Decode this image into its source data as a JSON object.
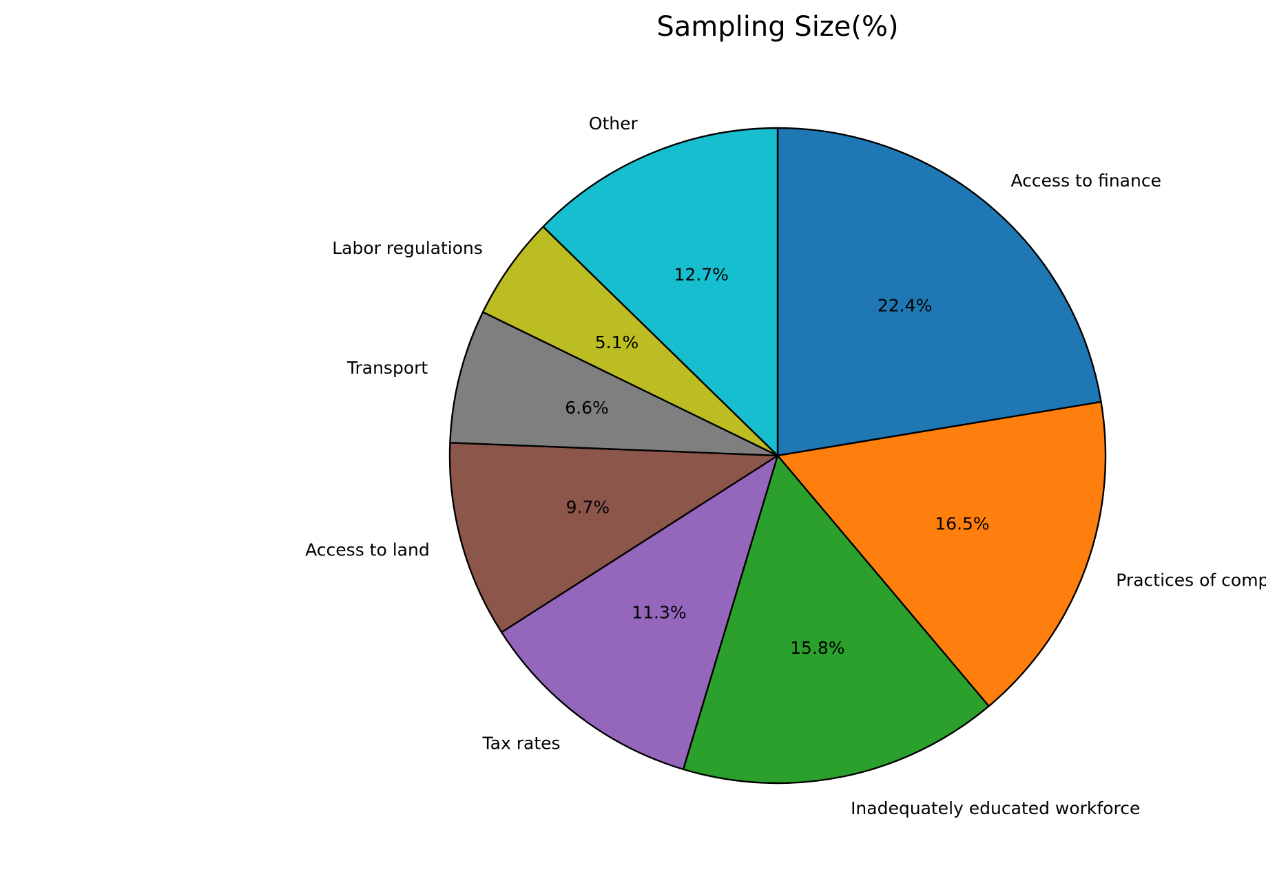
{
  "chart_data": {
    "type": "pie",
    "title": "Sampling Size(%)",
    "start_angle_deg": 90,
    "direction": "clockwise",
    "slices": [
      {
        "label": "Access to finance",
        "value": 22.4,
        "pct_text": "22.4%",
        "color": "#1f77b4"
      },
      {
        "label": "Practices of competitors in the informal sector",
        "value": 16.5,
        "pct_text": "16.5%",
        "color": "#ff7f0e"
      },
      {
        "label": "Inadequately educated workforce",
        "value": 15.8,
        "pct_text": "15.8%",
        "color": "#2ca02c"
      },
      {
        "label": "Tax rates",
        "value": 11.3,
        "pct_text": "11.3%",
        "color": "#9467bd"
      },
      {
        "label": "Access to land",
        "value": 9.7,
        "pct_text": "9.7%",
        "color": "#8c564b"
      },
      {
        "label": "Transport",
        "value": 6.6,
        "pct_text": "6.6%",
        "color": "#7f7f7f"
      },
      {
        "label": "Labor regulations",
        "value": 5.1,
        "pct_text": "5.1%",
        "color": "#bcbd22"
      },
      {
        "label": "Other",
        "value": 12.7,
        "pct_text": "12.7%",
        "color": "#17becf"
      }
    ]
  }
}
